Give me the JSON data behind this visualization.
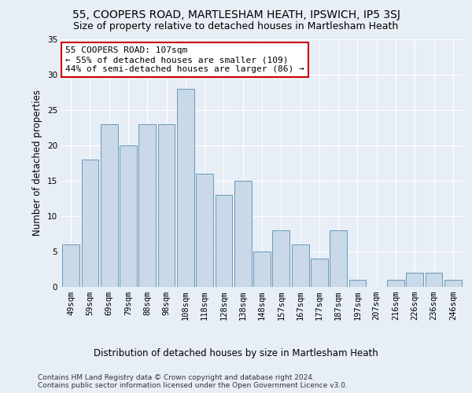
{
  "title": "55, COOPERS ROAD, MARTLESHAM HEATH, IPSWICH, IP5 3SJ",
  "subtitle": "Size of property relative to detached houses in Martlesham Heath",
  "xlabel_bottom": "Distribution of detached houses by size in Martlesham Heath",
  "ylabel": "Number of detached properties",
  "categories": [
    "49sqm",
    "59sqm",
    "69sqm",
    "79sqm",
    "88sqm",
    "98sqm",
    "108sqm",
    "118sqm",
    "128sqm",
    "138sqm",
    "148sqm",
    "157sqm",
    "167sqm",
    "177sqm",
    "187sqm",
    "197sqm",
    "207sqm",
    "216sqm",
    "226sqm",
    "236sqm",
    "246sqm"
  ],
  "values": [
    6,
    18,
    23,
    20,
    23,
    23,
    28,
    16,
    13,
    15,
    5,
    8,
    6,
    4,
    8,
    1,
    0,
    1,
    2,
    2,
    1
  ],
  "bar_color": "#c9d9e8",
  "bar_edge_color": "#6699bb",
  "highlight_index": 6,
  "annotation_text": "55 COOPERS ROAD: 107sqm\n← 55% of detached houses are smaller (109)\n44% of semi-detached houses are larger (86) →",
  "annotation_box_color": "#ffffff",
  "annotation_box_edge_color": "#cc0000",
  "ylim": [
    0,
    35
  ],
  "yticks": [
    0,
    5,
    10,
    15,
    20,
    25,
    30,
    35
  ],
  "background_color": "#e8eef5",
  "plot_background_color": "#e8eef5",
  "footer_line1": "Contains HM Land Registry data © Crown copyright and database right 2024.",
  "footer_line2": "Contains public sector information licensed under the Open Government Licence v3.0.",
  "title_fontsize": 10,
  "subtitle_fontsize": 9,
  "axis_label_fontsize": 8.5,
  "ylabel_fontsize": 8.5,
  "tick_fontsize": 7.5,
  "annotation_fontsize": 8,
  "footer_fontsize": 6.5
}
